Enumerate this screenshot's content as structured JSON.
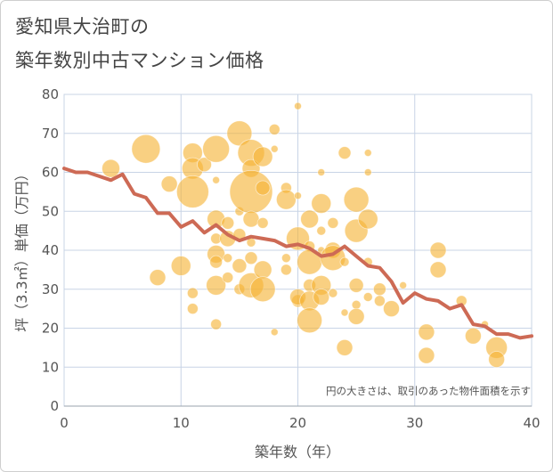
{
  "header": {
    "title_line1": "愛知県大治町の",
    "title_line2": "築年数別中古マンション価格"
  },
  "colors": {
    "bubble": "#f5b335",
    "line": "#cd6a55",
    "grid": "#c8d4e6",
    "text": "#555555"
  },
  "chart_data": {
    "type": "scatter",
    "xlabel": "築年数（年）",
    "ylabel": "坪（3.3㎡）単価（万円）",
    "xlim": [
      0,
      40
    ],
    "ylim": [
      0,
      80
    ],
    "x_ticks": [
      "0",
      "10",
      "20",
      "30",
      "40"
    ],
    "y_ticks": [
      "0",
      "10",
      "20",
      "30",
      "40",
      "50",
      "60",
      "70",
      "80"
    ],
    "annotation": "円の大きさは、取引のあった物件面積を示す",
    "grid": true,
    "bubbles": [
      {
        "x": 4,
        "y": 61,
        "size": 10
      },
      {
        "x": 7,
        "y": 66,
        "size": 16
      },
      {
        "x": 9,
        "y": 57,
        "size": 9
      },
      {
        "x": 10,
        "y": 36,
        "size": 11
      },
      {
        "x": 8,
        "y": 33,
        "size": 9
      },
      {
        "x": 11,
        "y": 65,
        "size": 11
      },
      {
        "x": 11,
        "y": 61,
        "size": 12
      },
      {
        "x": 11,
        "y": 55,
        "size": 18
      },
      {
        "x": 11,
        "y": 29,
        "size": 6
      },
      {
        "x": 11,
        "y": 25,
        "size": 6
      },
      {
        "x": 12,
        "y": 62,
        "size": 8
      },
      {
        "x": 13,
        "y": 66,
        "size": 15
      },
      {
        "x": 13,
        "y": 58,
        "size": 4
      },
      {
        "x": 13,
        "y": 48,
        "size": 10
      },
      {
        "x": 13,
        "y": 43,
        "size": 6
      },
      {
        "x": 13,
        "y": 39,
        "size": 10
      },
      {
        "x": 13,
        "y": 37,
        "size": 7
      },
      {
        "x": 13,
        "y": 31,
        "size": 11
      },
      {
        "x": 13,
        "y": 21,
        "size": 6
      },
      {
        "x": 14,
        "y": 47,
        "size": 7
      },
      {
        "x": 14,
        "y": 43,
        "size": 9
      },
      {
        "x": 14,
        "y": 38,
        "size": 5
      },
      {
        "x": 14,
        "y": 33,
        "size": 6
      },
      {
        "x": 15,
        "y": 70,
        "size": 14
      },
      {
        "x": 15,
        "y": 50,
        "size": 5
      },
      {
        "x": 15,
        "y": 44,
        "size": 7
      },
      {
        "x": 15,
        "y": 36,
        "size": 8
      },
      {
        "x": 15,
        "y": 30,
        "size": 6
      },
      {
        "x": 16,
        "y": 65,
        "size": 15
      },
      {
        "x": 16,
        "y": 61,
        "size": 10
      },
      {
        "x": 16,
        "y": 55,
        "size": 24
      },
      {
        "x": 16,
        "y": 48,
        "size": 9
      },
      {
        "x": 16,
        "y": 42,
        "size": 5
      },
      {
        "x": 16,
        "y": 38,
        "size": 7
      },
      {
        "x": 16,
        "y": 31,
        "size": 14
      },
      {
        "x": 17,
        "y": 64,
        "size": 11
      },
      {
        "x": 17,
        "y": 56,
        "size": 8
      },
      {
        "x": 17,
        "y": 47,
        "size": 6
      },
      {
        "x": 17,
        "y": 35,
        "size": 10
      },
      {
        "x": 17,
        "y": 30,
        "size": 14
      },
      {
        "x": 18,
        "y": 71,
        "size": 6
      },
      {
        "x": 18,
        "y": 66,
        "size": 4
      },
      {
        "x": 18,
        "y": 19,
        "size": 4
      },
      {
        "x": 19,
        "y": 56,
        "size": 6
      },
      {
        "x": 19,
        "y": 53,
        "size": 11
      },
      {
        "x": 19,
        "y": 38,
        "size": 5
      },
      {
        "x": 19,
        "y": 35,
        "size": 6
      },
      {
        "x": 20,
        "y": 77,
        "size": 4
      },
      {
        "x": 20,
        "y": 54,
        "size": 4
      },
      {
        "x": 20,
        "y": 43,
        "size": 13
      },
      {
        "x": 20,
        "y": 27,
        "size": 7
      },
      {
        "x": 20,
        "y": 28,
        "size": 9
      },
      {
        "x": 21,
        "y": 48,
        "size": 10
      },
      {
        "x": 21,
        "y": 41,
        "size": 6
      },
      {
        "x": 21,
        "y": 37,
        "size": 14
      },
      {
        "x": 21,
        "y": 31,
        "size": 7
      },
      {
        "x": 21,
        "y": 27,
        "size": 11
      },
      {
        "x": 21,
        "y": 22,
        "size": 14
      },
      {
        "x": 22,
        "y": 60,
        "size": 4
      },
      {
        "x": 22,
        "y": 52,
        "size": 11
      },
      {
        "x": 22,
        "y": 45,
        "size": 5
      },
      {
        "x": 22,
        "y": 40,
        "size": 4
      },
      {
        "x": 22,
        "y": 31,
        "size": 11
      },
      {
        "x": 22,
        "y": 28,
        "size": 9
      },
      {
        "x": 23,
        "y": 47,
        "size": 6
      },
      {
        "x": 23,
        "y": 40,
        "size": 9
      },
      {
        "x": 23,
        "y": 38,
        "size": 14
      },
      {
        "x": 23,
        "y": 29,
        "size": 5
      },
      {
        "x": 24,
        "y": 65,
        "size": 7
      },
      {
        "x": 24,
        "y": 37,
        "size": 5
      },
      {
        "x": 24,
        "y": 24,
        "size": 4
      },
      {
        "x": 24,
        "y": 15,
        "size": 9
      },
      {
        "x": 25,
        "y": 53,
        "size": 14
      },
      {
        "x": 25,
        "y": 45,
        "size": 13
      },
      {
        "x": 25,
        "y": 31,
        "size": 8
      },
      {
        "x": 25,
        "y": 26,
        "size": 5
      },
      {
        "x": 25,
        "y": 23,
        "size": 9
      },
      {
        "x": 26,
        "y": 65,
        "size": 4
      },
      {
        "x": 26,
        "y": 60,
        "size": 4
      },
      {
        "x": 26,
        "y": 48,
        "size": 11
      },
      {
        "x": 26,
        "y": 37,
        "size": 5
      },
      {
        "x": 26,
        "y": 28,
        "size": 5
      },
      {
        "x": 27,
        "y": 30,
        "size": 7
      },
      {
        "x": 27,
        "y": 27,
        "size": 6
      },
      {
        "x": 28,
        "y": 25,
        "size": 9
      },
      {
        "x": 29,
        "y": 31,
        "size": 4
      },
      {
        "x": 31,
        "y": 19,
        "size": 9
      },
      {
        "x": 31,
        "y": 13,
        "size": 9
      },
      {
        "x": 32,
        "y": 40,
        "size": 9
      },
      {
        "x": 32,
        "y": 35,
        "size": 9
      },
      {
        "x": 34,
        "y": 27,
        "size": 6
      },
      {
        "x": 35,
        "y": 18,
        "size": 9
      },
      {
        "x": 36,
        "y": 21,
        "size": 4
      },
      {
        "x": 37,
        "y": 15,
        "size": 12
      },
      {
        "x": 37,
        "y": 12,
        "size": 9
      }
    ],
    "series": [
      {
        "type": "line",
        "x": [
          0,
          1,
          2,
          3,
          4,
          5,
          6,
          7,
          8,
          9,
          10,
          11,
          12,
          13,
          14,
          15,
          16,
          17,
          18,
          19,
          20,
          21,
          22,
          23,
          24,
          25,
          26,
          27,
          28,
          29,
          30,
          31,
          32,
          33,
          34,
          35,
          36,
          37,
          38,
          39,
          40
        ],
        "values": [
          61,
          60,
          60,
          59,
          58,
          59.5,
          54.5,
          53.5,
          49.5,
          49.5,
          46,
          47.5,
          44.5,
          46.5,
          44,
          42.5,
          43.5,
          43,
          42.5,
          41,
          41.5,
          40.5,
          38.5,
          39,
          41,
          38.5,
          36,
          35.5,
          32,
          26.5,
          29,
          27.5,
          27,
          25,
          26,
          21,
          20.5,
          18.5,
          18.5,
          17.5,
          18
        ]
      }
    ]
  }
}
